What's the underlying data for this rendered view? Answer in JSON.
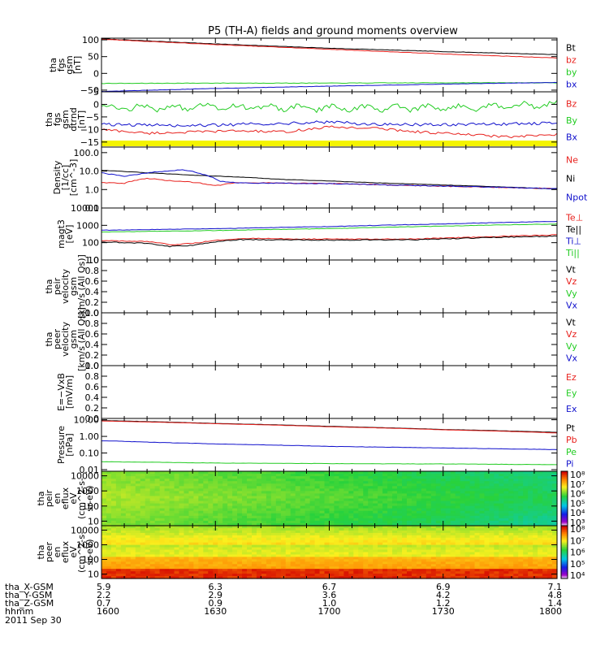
{
  "chart_data": {
    "type": "line",
    "title": "P5 (TH-A) fields and ground moments overview",
    "x_time_labels": [
      "1600",
      "1630",
      "1700",
      "1730",
      "1800"
    ],
    "ephemeris": [
      {
        "name": "tha_X-GSM",
        "values": [
          "5.9",
          "6.3",
          "6.7",
          "6.9",
          "7.1"
        ]
      },
      {
        "name": "tha_Y-GSM",
        "values": [
          "2.2",
          "2.9",
          "3.6",
          "4.2",
          "4.8"
        ]
      },
      {
        "name": "tha_Z-GSM",
        "values": [
          "0.7",
          "0.9",
          "1.0",
          "1.2",
          "1.4"
        ]
      },
      {
        "name": "hhmm",
        "values": [
          "1600",
          "1630",
          "1700",
          "1730",
          "1800"
        ]
      }
    ],
    "date_label": "2011 Sep 30",
    "panels": [
      {
        "id": "fgs",
        "ylabel_lines": [
          "tha",
          "fgs",
          "gsm",
          "[nT]"
        ],
        "yscale": "linear",
        "ylim": [
          -55,
          105
        ],
        "ticks": [
          {
            "v": 100,
            "t": "100"
          },
          {
            "v": 50,
            "t": "50"
          },
          {
            "v": 0,
            "t": "0"
          },
          {
            "v": -50,
            "t": "−50"
          }
        ],
        "series": [
          {
            "name": "Bt",
            "color": "#000000",
            "x": [
              0,
              0.25,
              0.5,
              0.75,
              1
            ],
            "y": [
              103,
              88,
              75,
              65,
              56
            ],
            "noise": 0.6
          },
          {
            "name": "bz",
            "color": "#e8211d",
            "x": [
              0,
              0.25,
              0.5,
              0.75,
              1
            ],
            "y": [
              102,
              86,
              72,
              58,
              46
            ],
            "noise": 0.6
          },
          {
            "name": "by",
            "color": "#22cc22",
            "x": [
              0,
              0.25,
              0.5,
              0.75,
              1
            ],
            "y": [
              -30,
              -29,
              -29,
              -28,
              -28
            ],
            "noise": 0.7
          },
          {
            "name": "bx",
            "color": "#1010cc",
            "x": [
              0,
              0.25,
              0.5,
              0.75,
              1
            ],
            "y": [
              -54,
              -45,
              -38,
              -32,
              -27
            ],
            "noise": 0.5
          }
        ]
      },
      {
        "id": "fgs_dtrnd",
        "ylabel_lines": [
          "tha",
          "fgs",
          "gsm",
          "dtrnd",
          "[nT]"
        ],
        "yscale": "linear",
        "ylim": [
          -17,
          5
        ],
        "ticks": [
          {
            "v": 5,
            "t": "5"
          },
          {
            "v": 0,
            "t": "0"
          },
          {
            "v": -5,
            "t": "−5"
          },
          {
            "v": -10,
            "t": "−10"
          },
          {
            "v": -15,
            "t": "−15"
          }
        ],
        "series": [
          {
            "name": "Bz",
            "color": "#e8211d",
            "x": [
              0,
              0.1,
              0.2,
              0.3,
              0.4,
              0.5,
              0.6,
              0.7,
              0.8,
              0.9,
              1
            ],
            "y": [
              -10,
              -11.5,
              -11,
              -10.5,
              -11,
              -9,
              -9.5,
              -11,
              -12,
              -13,
              -12
            ],
            "noise": 0.5
          },
          {
            "name": "By",
            "color": "#22cc22",
            "x": [
              0,
              0.25,
              0.5,
              0.75,
              1
            ],
            "y": [
              -1.5,
              -1,
              -1.5,
              -1.5,
              0
            ],
            "noise": 0.9
          },
          {
            "name": "Bx",
            "color": "#1010cc",
            "x": [
              0,
              0.2,
              0.4,
              0.5,
              0.6,
              0.8,
              1
            ],
            "y": [
              -8,
              -8.5,
              -7.5,
              -7,
              -8,
              -8,
              -7.5
            ],
            "noise": 0.6
          }
        ],
        "yellow_strip": true
      },
      {
        "id": "density",
        "ylabel_lines": [
          "Density",
          "[1/cc]",
          "[cm^-3]"
        ],
        "yscale": "log",
        "ylim": [
          0.1,
          200
        ],
        "ticks": [
          {
            "v": 100,
            "t": "100.0"
          },
          {
            "v": 10,
            "t": "10.0"
          },
          {
            "v": 1,
            "t": "1.0"
          },
          {
            "v": 0.1,
            "t": "0.1"
          }
        ],
        "series": [
          {
            "name": "Ne",
            "color": "#e8211d",
            "x": [
              0,
              0.05,
              0.1,
              0.15,
              0.2,
              0.25,
              0.3,
              0.5,
              0.7,
              1
            ],
            "y": [
              2.4,
              2.2,
              4,
              3,
              2.5,
              1.6,
              2.4,
              2.1,
              1.6,
              1.1
            ],
            "noise": 0.05
          },
          {
            "name": "Ni",
            "color": "#000000",
            "x": [
              0,
              0.1,
              0.2,
              0.4,
              0.6,
              0.8,
              1
            ],
            "y": [
              11,
              8,
              6,
              3.5,
              2.3,
              1.6,
              1.05
            ],
            "noise": 0.02
          },
          {
            "name": "Npot",
            "color": "#1010cc",
            "x": [
              0,
              0.05,
              0.12,
              0.18,
              0.22,
              0.26,
              0.3,
              0.5,
              0.7,
              1
            ],
            "y": [
              8,
              5,
              9,
              12,
              7,
              2.8,
              2.3,
              2.1,
              1.6,
              1.1
            ],
            "noise": 0.05
          }
        ]
      },
      {
        "id": "temp",
        "ylabel_lines": [
          "magt3",
          "[eV]"
        ],
        "yscale": "log",
        "ylim": [
          10,
          10000
        ],
        "ticks": [
          {
            "v": 10000,
            "t": "10000"
          },
          {
            "v": 1000,
            "t": "1000"
          },
          {
            "v": 100,
            "t": "100"
          },
          {
            "v": 10,
            "t": "10"
          }
        ],
        "series": [
          {
            "name": "Te⊥",
            "color": "#e8211d",
            "x": [
              0,
              0.1,
              0.15,
              0.2,
              0.3,
              0.5,
              0.7,
              1
            ],
            "y": [
              130,
              115,
              75,
              90,
              175,
              160,
              165,
              280
            ],
            "noise": 0.06
          },
          {
            "name": "Te||",
            "color": "#000000",
            "x": [
              0,
              0.1,
              0.15,
              0.2,
              0.3,
              0.5,
              0.7,
              1
            ],
            "y": [
              110,
              90,
              60,
              70,
              150,
              140,
              150,
              240
            ],
            "noise": 0.06
          },
          {
            "name": "Ti⊥",
            "color": "#1010cc",
            "x": [
              0,
              0.25,
              0.5,
              0.75,
              1
            ],
            "y": [
              520,
              640,
              850,
              1200,
              1700
            ],
            "noise": 0.03
          },
          {
            "name": "Ti||",
            "color": "#22cc22",
            "x": [
              0,
              0.25,
              0.5,
              0.75,
              1
            ],
            "y": [
              410,
              500,
              650,
              900,
              1200
            ],
            "noise": 0.03
          }
        ]
      },
      {
        "id": "peir_vel",
        "ylabel_lines": [
          "tha",
          "peir",
          "velocity",
          "gsm",
          "[km/s (All Qs)]"
        ],
        "yscale": "linear",
        "ylim": [
          0,
          1
        ],
        "ticks": [
          {
            "v": 1,
            "t": "1.0"
          },
          {
            "v": 0.8,
            "t": "0.8"
          },
          {
            "v": 0.6,
            "t": "0.6"
          },
          {
            "v": 0.4,
            "t": "0.4"
          },
          {
            "v": 0.2,
            "t": "0.2"
          },
          {
            "v": 0,
            "t": "0.0"
          }
        ],
        "legend_only": [
          "Vt",
          "Vz",
          "Vy",
          "Vx"
        ],
        "legend_colors": [
          "#000000",
          "#e8211d",
          "#22cc22",
          "#1010cc"
        ],
        "series": []
      },
      {
        "id": "peer_vel",
        "ylabel_lines": [
          "tha",
          "peer",
          "velocity",
          "gsm",
          "[km/s (All Qs)]"
        ],
        "yscale": "linear",
        "ylim": [
          0,
          1
        ],
        "ticks": [
          {
            "v": 1,
            "t": "1.0"
          },
          {
            "v": 0.8,
            "t": "0.8"
          },
          {
            "v": 0.6,
            "t": "0.6"
          },
          {
            "v": 0.4,
            "t": "0.4"
          },
          {
            "v": 0.2,
            "t": "0.2"
          },
          {
            "v": 0,
            "t": "0.0"
          }
        ],
        "legend_only": [
          "Vt",
          "Vz",
          "Vy",
          "Vx"
        ],
        "legend_colors": [
          "#000000",
          "#e8211d",
          "#22cc22",
          "#1010cc"
        ],
        "series": []
      },
      {
        "id": "efield",
        "ylabel_lines": [
          "E=−VxB",
          "[mV/m]"
        ],
        "yscale": "linear",
        "ylim": [
          0,
          1
        ],
        "ticks": [
          {
            "v": 1,
            "t": "1.0"
          },
          {
            "v": 0.8,
            "t": "0.8"
          },
          {
            "v": 0.6,
            "t": "0.6"
          },
          {
            "v": 0.4,
            "t": "0.4"
          },
          {
            "v": 0.2,
            "t": "0.2"
          },
          {
            "v": 0,
            "t": "0.0"
          }
        ],
        "legend_only": [
          "Ez",
          "Ey",
          "Ex"
        ],
        "legend_colors": [
          "#e8211d",
          "#22cc22",
          "#1010cc"
        ],
        "series": []
      },
      {
        "id": "pressure",
        "ylabel_lines": [
          "Pressure",
          "[nPa]"
        ],
        "yscale": "log",
        "ylim": [
          0.008,
          12
        ],
        "ticks": [
          {
            "v": 10,
            "t": "10.00"
          },
          {
            "v": 1,
            "t": "1.00"
          },
          {
            "v": 0.1,
            "t": "0.10"
          },
          {
            "v": 0.01,
            "t": "0.01"
          }
        ],
        "series": [
          {
            "name": "Pt",
            "color": "#000000",
            "x": [
              0,
              0.25,
              0.5,
              0.75,
              1
            ],
            "y": [
              9,
              6,
              4,
              2.6,
              1.75
            ],
            "noise": 0.01
          },
          {
            "name": "Pb",
            "color": "#e8211d",
            "x": [
              0,
              0.25,
              0.5,
              0.75,
              1
            ],
            "y": [
              8.4,
              5.8,
              3.8,
              2.5,
              1.6
            ],
            "noise": 0.01
          },
          {
            "name": "Pe",
            "color": "#22cc22",
            "x": [
              0,
              0.25,
              0.5,
              0.75,
              1
            ],
            "y": [
              0.03,
              0.025,
              0.023,
              0.022,
              0.02
            ],
            "noise": 0.02
          },
          {
            "name": "Pi",
            "color": "#1010cc",
            "x": [
              0,
              0.1,
              0.25,
              0.5,
              0.75,
              1
            ],
            "y": [
              0.55,
              0.45,
              0.35,
              0.25,
              0.2,
              0.16
            ],
            "noise": 0.02
          }
        ]
      },
      {
        "id": "peir_spec",
        "type": "heatmap",
        "ylabel_lines": [
          "tha",
          "peir",
          "en",
          "eflux",
          "eV",
          "(cm^2-s-",
          "sr-eV)"
        ],
        "yscale": "log",
        "ylim": [
          5,
          20000
        ],
        "ticks": [
          {
            "v": 10000,
            "t": "10000"
          },
          {
            "v": 1000,
            "t": "1000"
          },
          {
            "v": 100,
            "t": "100"
          },
          {
            "v": 10,
            "t": "10"
          }
        ],
        "colorbar_ticks": [
          "10⁸",
          "10⁷",
          "10⁶",
          "10⁵",
          "10⁴",
          "10³"
        ],
        "colorbar_range": [
          3,
          8
        ]
      },
      {
        "id": "peer_spec",
        "type": "heatmap",
        "ylabel_lines": [
          "tha",
          "peer",
          "en",
          "eflux",
          "eV",
          "(cm^2-s-",
          "sr-eV)"
        ],
        "yscale": "log",
        "ylim": [
          5,
          20000
        ],
        "ticks": [
          {
            "v": 10000,
            "t": "10000"
          },
          {
            "v": 1000,
            "t": "1000"
          },
          {
            "v": 100,
            "t": "100"
          },
          {
            "v": 10,
            "t": "10"
          }
        ],
        "colorbar_ticks": [
          "10⁸",
          "10⁷",
          "10⁶",
          "10⁵",
          "10⁴"
        ],
        "colorbar_range": [
          4,
          8.3
        ]
      }
    ]
  }
}
